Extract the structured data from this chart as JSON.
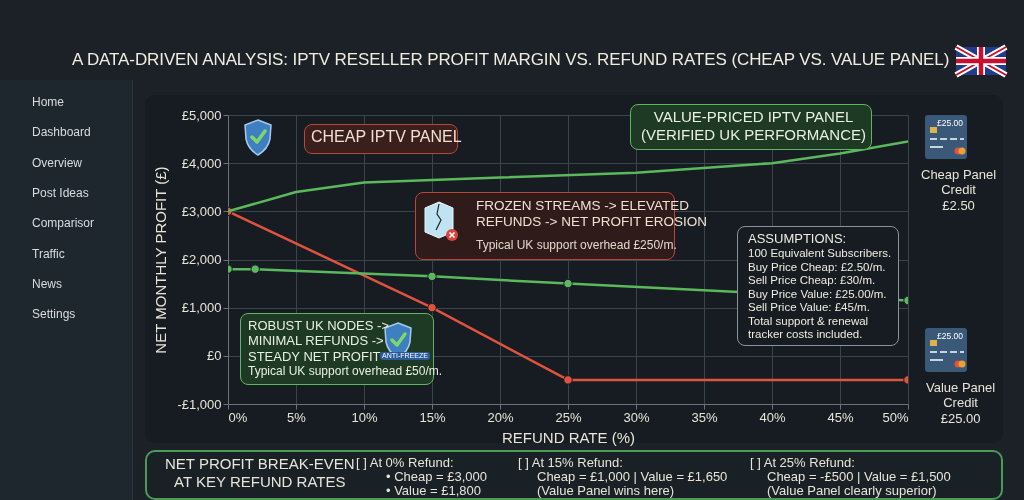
{
  "chart_data": {
    "type": "line",
    "title": "A DATA-DRIVEN ANALYSIS: IPTV RESELLER PROFIT MARGIN VS. REFUND RATES (CHEAP VS. VALUE PANEL)",
    "xlabel": "REFUND RATE (%)",
    "ylabel": "NET MONTHLY PROFIT (£)",
    "xlim": [
      0,
      50
    ],
    "xticks": [
      {
        "value": 0,
        "label": "0%"
      },
      {
        "value": 5,
        "label": "5%"
      },
      {
        "value": 10,
        "label": "10%"
      },
      {
        "value": 15,
        "label": "15%"
      },
      {
        "value": 20,
        "label": "20%"
      },
      {
        "value": 25,
        "label": "25%"
      },
      {
        "value": 30,
        "label": "30%"
      },
      {
        "value": 35,
        "label": "35%"
      },
      {
        "value": 40,
        "label": "40%"
      },
      {
        "value": 45,
        "label": "45%"
      },
      {
        "value": 50,
        "label": "50%"
      }
    ],
    "ylim": [
      -1000,
      5000
    ],
    "yticks": [
      {
        "value": -1000,
        "label": "-£1,000"
      },
      {
        "value": 0,
        "label": "£0"
      },
      {
        "value": 1000,
        "label": "£1,000"
      },
      {
        "value": 2000,
        "label": "£2,000"
      },
      {
        "value": 3000,
        "label": "£3,000"
      },
      {
        "value": 4000,
        "label": "£4,000"
      },
      {
        "value": 5000,
        "label": "£5,000"
      }
    ],
    "grid": true,
    "series": [
      {
        "color": "#e0533f",
        "marker": "circle",
        "x": [
          0,
          15,
          25,
          50
        ],
        "values": [
          3000,
          1000,
          -500,
          -500
        ]
      },
      {
        "color": "#5cb85c",
        "marker": "circle",
        "x": [
          0,
          2,
          15,
          25,
          50
        ],
        "values": [
          1800,
          1800,
          1650,
          1500,
          1150
        ]
      },
      {
        "color": "#5cb85c",
        "marker": "none",
        "x": [
          0,
          5,
          10,
          20,
          30,
          40,
          45,
          50
        ],
        "values": [
          3000,
          3400,
          3600,
          3700,
          3800,
          4000,
          4200,
          4450
        ]
      }
    ],
    "annotations": [
      "CHEAP IPTV PANEL",
      "VALUE-PRICED IPTV PANEL\n(VERIFIED UK PERFORMANCE)",
      "FROZEN STREAMS -> ELEVATED\nREFUNDS -> NET PROFIT EROSION",
      "Typical UK support overhead £250/m.",
      "ROBUST UK NODES ->\nMINIMAL REFUNDS ->\nSTEADY NET PROFIT",
      "Typical UK support overhead £50/m.",
      "ANTI-FREEZE",
      "ASSUMPTIONS:",
      "100 Equivalent Subscribers.\nBuy Price Cheap: £2.50/m.\nSell Price Cheap: £30/m.\nBuy Price Value: £25.00/m.\nSell Price Value: £45/m.\nTotal support & renewal\ntracker costs included.",
      "£25.00",
      "Cheap Panel\nCredit\n£2.50",
      "£25.00",
      "Value Panel\nCredit\n£25.00",
      "NET PROFIT BREAK-EVEN\nAT KEY REFUND RATES",
      "[ ] At 0% Refund:",
      "• Cheap = £3,000",
      "• Value = £1,800",
      "[ ] At 15% Refund:",
      "Cheap = £1,000 | Value = £1,650",
      "(Value Panel wins here)",
      "[ ] At 25% Refund:",
      "Cheap = -£500 | Value = £1,500",
      "(Value Panel clearly superior)",
      "Home",
      "Dashboard",
      "Overview",
      "Post Ideas",
      "Comparisor",
      "Traffic",
      "News",
      "Settings"
    ]
  }
}
